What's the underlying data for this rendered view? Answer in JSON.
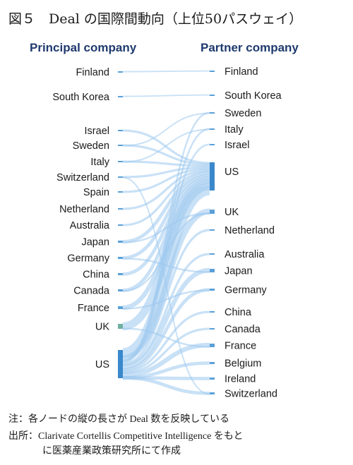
{
  "figure": {
    "title": "図５　Deal の国際間動向（上位50パスウェイ）",
    "left_heading": "Principal company",
    "right_heading": "Partner company",
    "note_line1": "注：各ノードの縦の長さが Deal 数を反映している",
    "note_line2": "出所：Clarivate Cortellis Competitive Intelligence をもと",
    "note_line3": "に医薬産業政策研究所にて作成"
  },
  "colors": {
    "link": "#9cc8ee",
    "node_small": "#5aa0d8",
    "node_large": "#3a88cc",
    "node_uk": "#6fb0a0"
  },
  "principal_nodes": [
    "Finland",
    "South Korea",
    "Israel",
    "Sweden",
    "Italy",
    "Switzerland",
    "Spain",
    "Netherland",
    "Australia",
    "Japan",
    "Germany",
    "China",
    "Canada",
    "France",
    "UK",
    "US"
  ],
  "partner_nodes": [
    "Finland",
    "South Korea",
    "Sweden",
    "Italy",
    "Israel",
    "US",
    "UK",
    "Netherland",
    "Australia",
    "Japan",
    "Germany",
    "China",
    "Canada",
    "France",
    "Belgium",
    "Ireland",
    "Switzerland"
  ]
}
